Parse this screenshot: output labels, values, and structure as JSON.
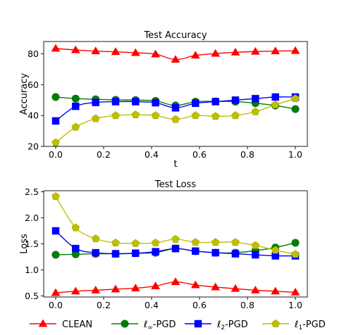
{
  "chart_data": [
    {
      "type": "line",
      "title": "Test Accuracy",
      "xlabel": "t",
      "ylabel": "Accuracy",
      "xlim": [
        -0.05,
        1.05
      ],
      "ylim": [
        20,
        88
      ],
      "xticks": [
        "0.0",
        "0.2",
        "0.4",
        "0.6",
        "0.8",
        "1.0"
      ],
      "yticks": [
        "20",
        "40",
        "60",
        "80"
      ],
      "x": [
        0.0,
        0.0833,
        0.1667,
        0.25,
        0.3333,
        0.4167,
        0.5,
        0.5833,
        0.6667,
        0.75,
        0.8333,
        0.9167,
        1.0
      ],
      "series": [
        {
          "name": "CLEAN",
          "color": "#ff0000",
          "marker": "triangle",
          "values": [
            83.5,
            82.5,
            81.8,
            81.3,
            80.7,
            79.8,
            76.3,
            79.0,
            80.2,
            81.0,
            81.5,
            81.8,
            82.0
          ]
        },
        {
          "name": "ℓ∞-PGD",
          "color": "#008000",
          "marker": "circle",
          "values": [
            52.0,
            51.0,
            50.5,
            50.2,
            50.0,
            49.5,
            46.5,
            49.0,
            49.2,
            49.0,
            48.0,
            46.5,
            44.2
          ]
        },
        {
          "name": "ℓ2-PGD",
          "color": "#0000ff",
          "marker": "square",
          "values": [
            36.5,
            46.0,
            48.5,
            49.0,
            49.0,
            48.3,
            45.0,
            48.0,
            49.0,
            50.0,
            51.0,
            52.0,
            52.0
          ]
        },
        {
          "name": "ℓ1-PGD",
          "color": "#bfbf00",
          "marker": "pentagon",
          "values": [
            22.5,
            32.5,
            38.0,
            40.0,
            40.5,
            40.0,
            37.5,
            40.0,
            39.5,
            40.0,
            42.5,
            47.0,
            51.0
          ]
        }
      ]
    },
    {
      "type": "line",
      "title": "Test Loss",
      "xlabel": "",
      "ylabel": "Loss",
      "xlim": [
        -0.05,
        1.05
      ],
      "ylim": [
        0.48,
        2.52
      ],
      "xticks": [
        "0.0",
        "0.2",
        "0.4",
        "0.6",
        "0.8",
        "1.0"
      ],
      "yticks": [
        "0.5",
        "1.0",
        "1.5",
        "2.0",
        "2.5"
      ],
      "x": [
        0.0,
        0.0833,
        0.1667,
        0.25,
        0.3333,
        0.4167,
        0.5,
        0.5833,
        0.6667,
        0.75,
        0.8333,
        0.9167,
        1.0
      ],
      "series": [
        {
          "name": "CLEAN",
          "color": "#ff0000",
          "marker": "triangle",
          "values": [
            0.56,
            0.59,
            0.61,
            0.63,
            0.65,
            0.69,
            0.77,
            0.71,
            0.67,
            0.64,
            0.61,
            0.59,
            0.57
          ]
        },
        {
          "name": "ℓ∞-PGD",
          "color": "#008000",
          "marker": "circle",
          "values": [
            1.29,
            1.3,
            1.31,
            1.31,
            1.32,
            1.33,
            1.41,
            1.36,
            1.33,
            1.33,
            1.37,
            1.43,
            1.52
          ]
        },
        {
          "name": "ℓ2-PGD",
          "color": "#0000ff",
          "marker": "square",
          "values": [
            1.75,
            1.41,
            1.33,
            1.31,
            1.32,
            1.35,
            1.41,
            1.36,
            1.33,
            1.31,
            1.29,
            1.27,
            1.27
          ]
        },
        {
          "name": "ℓ1-PGD",
          "color": "#bfbf00",
          "marker": "pentagon",
          "values": [
            2.41,
            1.81,
            1.6,
            1.52,
            1.51,
            1.52,
            1.59,
            1.53,
            1.53,
            1.53,
            1.47,
            1.38,
            1.3
          ]
        }
      ]
    }
  ],
  "legend": {
    "position": "bottom",
    "items": [
      {
        "label": "CLEAN",
        "color": "#ff0000",
        "marker": "triangle"
      },
      {
        "label": "ℓ∞-PGD",
        "color": "#008000",
        "marker": "circle"
      },
      {
        "label": "ℓ2-PGD",
        "color": "#0000ff",
        "marker": "square"
      },
      {
        "label": "ℓ1-PGD",
        "color": "#bfbf00",
        "marker": "pentagon"
      }
    ]
  }
}
